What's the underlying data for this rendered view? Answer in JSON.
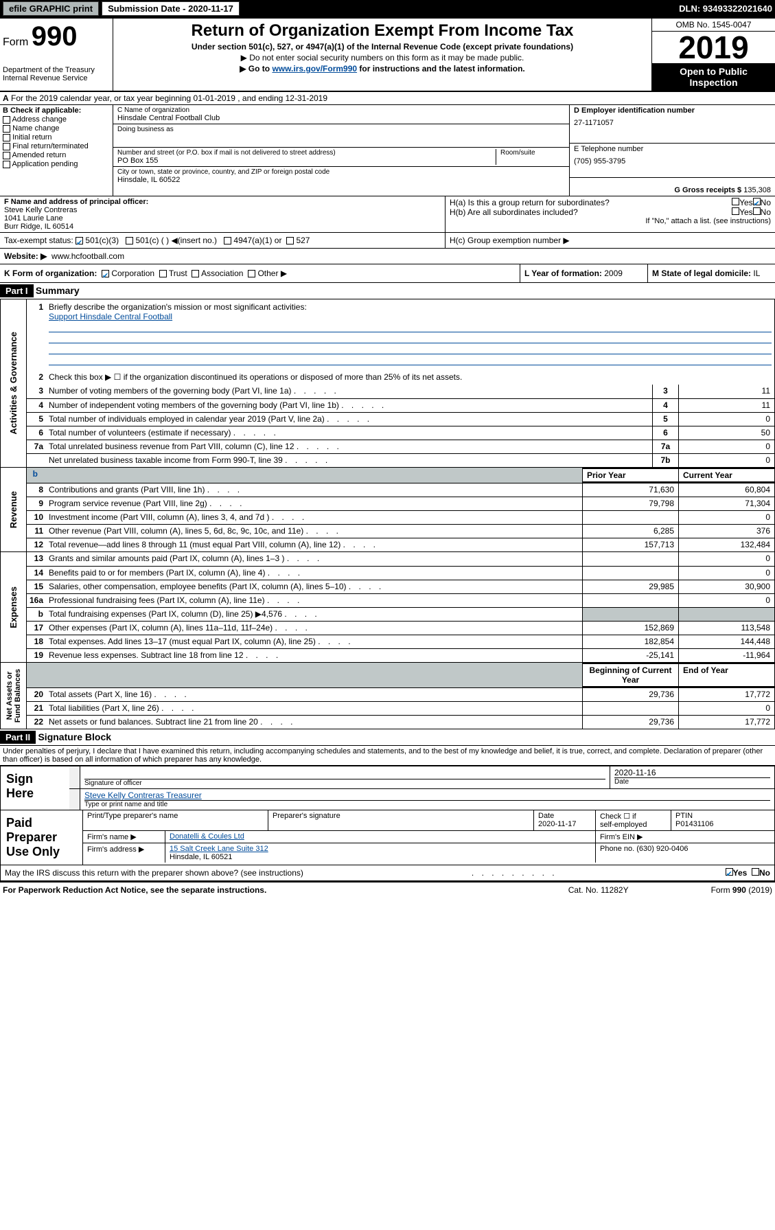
{
  "top": {
    "efile": "efile GRAPHIC print",
    "submission_label": "Submission Date - 2020-11-17",
    "dln": "DLN: 93493322021640"
  },
  "header": {
    "form_prefix": "Form",
    "form_num": "990",
    "dept": "Department of the Treasury\nInternal Revenue Service",
    "title": "Return of Organization Exempt From Income Tax",
    "sub": "Under section 501(c), 527, or 4947(a)(1) of the Internal Revenue Code (except private foundations)",
    "note1": "▶ Do not enter social security numbers on this form as it may be made public.",
    "note2_a": "▶ Go to ",
    "note2_link": "www.irs.gov/Form990",
    "note2_b": " for instructions and the latest information.",
    "omb": "OMB No. 1545-0047",
    "year": "2019",
    "otp": "Open to Public\nInspection"
  },
  "A": "For the 2019 calendar year, or tax year beginning 01-01-2019    , and ending 12-31-2019",
  "B": {
    "label": "B Check if applicable:",
    "items": [
      "Address change",
      "Name change",
      "Initial return",
      "Final return/terminated",
      "Amended return",
      "Application pending"
    ]
  },
  "C": {
    "name_label": "C Name of organization",
    "name": "Hinsdale Central Football Club",
    "dba_label": "Doing business as",
    "addr_label": "Number and street (or P.O. box if mail is not delivered to street address)",
    "room_label": "Room/suite",
    "addr": "PO Box 155",
    "city_label": "City or town, state or province, country, and ZIP or foreign postal code",
    "city": "Hinsdale, IL  60522"
  },
  "right": {
    "D_label": "D Employer identification number",
    "D": "27-1171057",
    "E_label": "E Telephone number",
    "E": "(705) 955-3795",
    "G_label": "G Gross receipts $ ",
    "G": "135,308"
  },
  "F": {
    "label": "F  Name and address of principal officer:",
    "name": "Steve Kelly Contreras",
    "addr1": "1041 Laurie Lane",
    "addr2": "Burr Ridge, IL  60514"
  },
  "H": {
    "a": "H(a)  Is this a group return for subordinates?",
    "b": "H(b)  Are all subordinates included?",
    "b_note": "If \"No,\" attach a list. (see instructions)",
    "c": "H(c)  Group exemption number ▶",
    "yes": "Yes",
    "no": "No"
  },
  "I": {
    "label": "Tax-exempt status:",
    "opts": [
      "501(c)(3)",
      "501(c) (   ) ◀(insert no.)",
      "4947(a)(1) or",
      "527"
    ]
  },
  "J": {
    "label": "Website: ▶",
    "val": "www.hcfootball.com"
  },
  "K": {
    "label": "K Form of organization:",
    "opts": [
      "Corporation",
      "Trust",
      "Association",
      "Other ▶"
    ]
  },
  "L": {
    "label": "L Year of formation: ",
    "val": "2009"
  },
  "M": {
    "label": "M State of legal domicile: ",
    "val": "IL"
  },
  "parts": {
    "p1": "Part I",
    "p1t": "Summary",
    "p2": "Part II",
    "p2t": "Signature Block"
  },
  "summary": {
    "l1_label": "Briefly describe the organization's mission or most significant activities:",
    "l1_text": "Support Hinsdale Central Football",
    "l2": "Check this box ▶ ☐  if the organization discontinued its operations or disposed of more than 25% of its net assets.",
    "rows_simple": [
      {
        "n": "3",
        "t": "Number of voting members of the governing body (Part VI, line 1a)",
        "k": "3",
        "v": "11"
      },
      {
        "n": "4",
        "t": "Number of independent voting members of the governing body (Part VI, line 1b)",
        "k": "4",
        "v": "11"
      },
      {
        "n": "5",
        "t": "Total number of individuals employed in calendar year 2019 (Part V, line 2a)",
        "k": "5",
        "v": "0"
      },
      {
        "n": "6",
        "t": "Total number of volunteers (estimate if necessary)",
        "k": "6",
        "v": "50"
      },
      {
        "n": "7a",
        "t": "Total unrelated business revenue from Part VIII, column (C), line 12",
        "k": "7a",
        "v": "0"
      },
      {
        "n": "",
        "t": "Net unrelated business taxable income from Form 990-T, line 39",
        "k": "7b",
        "v": "0"
      }
    ],
    "hdr_prior": "Prior Year",
    "hdr_curr": "Current Year",
    "hdr_beg": "Beginning of Current Year",
    "hdr_end": "End of Year",
    "rows_rev": [
      {
        "n": "8",
        "t": "Contributions and grants (Part VIII, line 1h)",
        "p": "71,630",
        "c": "60,804"
      },
      {
        "n": "9",
        "t": "Program service revenue (Part VIII, line 2g)",
        "p": "79,798",
        "c": "71,304"
      },
      {
        "n": "10",
        "t": "Investment income (Part VIII, column (A), lines 3, 4, and 7d )",
        "p": "",
        "c": "0"
      },
      {
        "n": "11",
        "t": "Other revenue (Part VIII, column (A), lines 5, 6d, 8c, 9c, 10c, and 11e)",
        "p": "6,285",
        "c": "376"
      },
      {
        "n": "12",
        "t": "Total revenue—add lines 8 through 11 (must equal Part VIII, column (A), line 12)",
        "p": "157,713",
        "c": "132,484"
      }
    ],
    "rows_exp": [
      {
        "n": "13",
        "t": "Grants and similar amounts paid (Part IX, column (A), lines 1–3 )",
        "p": "",
        "c": "0"
      },
      {
        "n": "14",
        "t": "Benefits paid to or for members (Part IX, column (A), line 4)",
        "p": "",
        "c": "0"
      },
      {
        "n": "15",
        "t": "Salaries, other compensation, employee benefits (Part IX, column (A), lines 5–10)",
        "p": "29,985",
        "c": "30,900"
      },
      {
        "n": "16a",
        "t": "Professional fundraising fees (Part IX, column (A), line 11e)",
        "p": "",
        "c": "0"
      },
      {
        "n": "b",
        "t": "Total fundraising expenses (Part IX, column (D), line 25) ▶4,576",
        "p": "",
        "c": "",
        "grey": true
      },
      {
        "n": "17",
        "t": "Other expenses (Part IX, column (A), lines 11a–11d, 11f–24e)",
        "p": "152,869",
        "c": "113,548"
      },
      {
        "n": "18",
        "t": "Total expenses. Add lines 13–17 (must equal Part IX, column (A), line 25)",
        "p": "182,854",
        "c": "144,448"
      },
      {
        "n": "19",
        "t": "Revenue less expenses. Subtract line 18 from line 12",
        "p": "-25,141",
        "c": "-11,964"
      }
    ],
    "rows_net": [
      {
        "n": "20",
        "t": "Total assets (Part X, line 16)",
        "p": "29,736",
        "c": "17,772"
      },
      {
        "n": "21",
        "t": "Total liabilities (Part X, line 26)",
        "p": "",
        "c": "0"
      },
      {
        "n": "22",
        "t": "Net assets or fund balances. Subtract line 21 from line 20",
        "p": "29,736",
        "c": "17,772"
      }
    ],
    "sides": {
      "ag": "Activities & Governance",
      "rev": "Revenue",
      "exp": "Expenses",
      "net": "Net Assets or\nFund Balances"
    }
  },
  "sig": {
    "perjury": "Under penalties of perjury, I declare that I have examined this return, including accompanying schedules and statements, and to the best of my knowledge and belief, it is true, correct, and complete. Declaration of preparer (other than officer) is based on all information of which preparer has any knowledge.",
    "sign_here": "Sign\nHere",
    "sig_of_officer": "Signature of officer",
    "date": "Date",
    "date_val": "2020-11-16",
    "officer_name": "Steve Kelly Contreras Treasurer",
    "officer_sub": "Type or print name and title"
  },
  "paid": {
    "label": "Paid\nPreparer\nUse Only",
    "c1": "Print/Type preparer's name",
    "c2": "Preparer's signature",
    "c3": "Date",
    "c3v": "2020-11-17",
    "c4a": "Check ☐ if",
    "c4b": "self-employed",
    "c5": "PTIN",
    "c5v": "P01431106",
    "firm_name_l": "Firm's name      ▶",
    "firm_name": "Donatelli & Coules Ltd",
    "firm_ein": "Firm's EIN ▶",
    "firm_addr_l": "Firm's address ▶",
    "firm_addr1": "15 Salt Creek Lane Suite 312",
    "firm_addr2": "Hinsdale, IL  60521",
    "phone_l": "Phone no. ",
    "phone": "(630) 920-0406"
  },
  "discuss": "May the IRS discuss this return with the preparer shown above? (see instructions)",
  "footer": {
    "l": "For Paperwork Reduction Act Notice, see the separate instructions.",
    "m": "Cat. No. 11282Y",
    "r": "Form 990 (2019)"
  },
  "colors": {
    "link": "#004b9a",
    "check": "#0070c0"
  }
}
